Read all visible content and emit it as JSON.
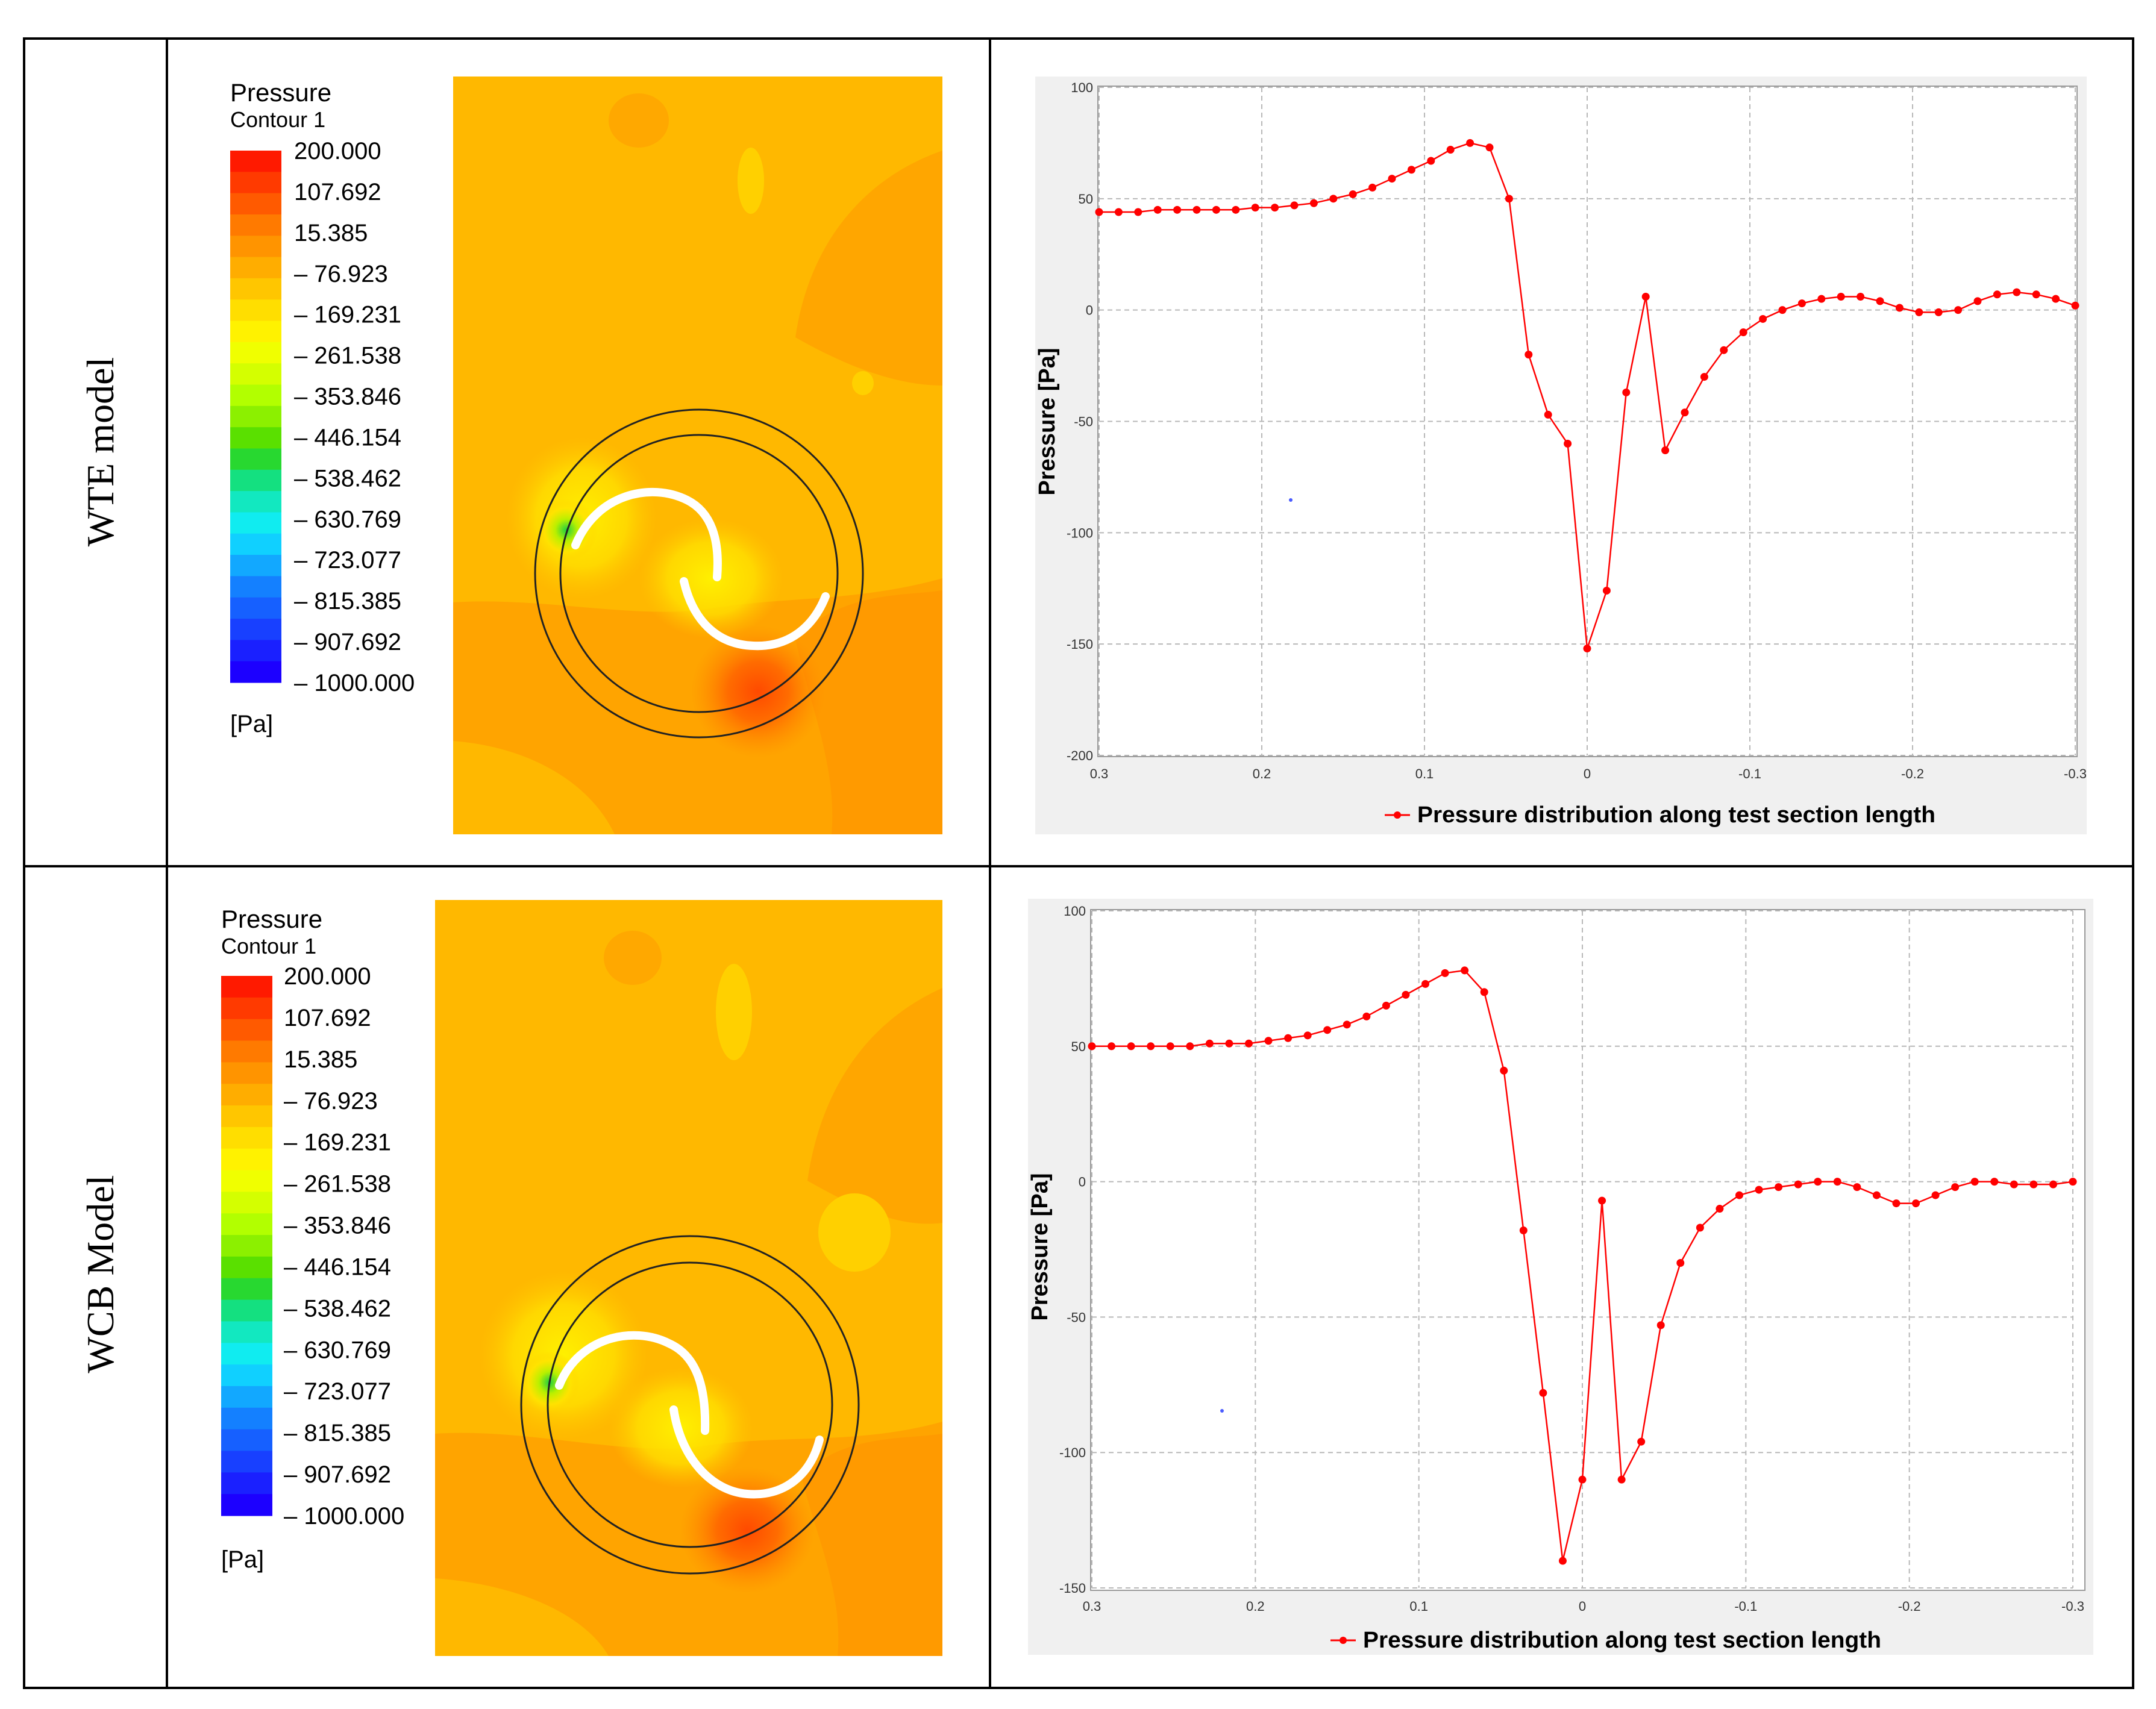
{
  "colorbar": {
    "colors": [
      "#ff1a00",
      "#ff3a00",
      "#ff5a00",
      "#ff7a00",
      "#ff9400",
      "#ffad00",
      "#ffc600",
      "#ffde00",
      "#fff200",
      "#f0ff00",
      "#d4ff00",
      "#b2ff00",
      "#8cf000",
      "#5ae000",
      "#28d830",
      "#14e080",
      "#12e8c0",
      "#10ecf0",
      "#10d0ff",
      "#12a8ff",
      "#1480ff",
      "#1660ff",
      "#1840ff",
      "#1a20ff",
      "#1c00ff"
    ],
    "background": "#ffb000"
  },
  "rows": [
    {
      "row_label": "WTE model",
      "legend": {
        "title": "Pressure",
        "subtitle": "Contour 1",
        "unit": "[Pa]",
        "ticks": [
          "200.000",
          "107.692",
          "15.385",
          "– 76.923",
          "– 169.231",
          "– 261.538",
          "– 353.846",
          "– 446.154",
          "– 538.462",
          "– 630.769",
          "– 723.077",
          "– 815.385",
          "– 907.692",
          "– 1000.000"
        ]
      },
      "chart": {
        "ylabel": "Pressure [Pa]",
        "legend_label": "Pressure distribution along test section length",
        "x_tick_labels": [
          "0.3",
          "0.2",
          "0.1",
          "0",
          "-0.1",
          "-0.2",
          "-0.3"
        ],
        "y_tick_labels": [
          "100",
          "50",
          "0",
          "-50",
          "-100",
          "-150",
          "-200"
        ]
      }
    },
    {
      "row_label": "WCB Model",
      "legend": {
        "title": "Pressure",
        "subtitle": "Contour 1",
        "unit": "[Pa]",
        "ticks": [
          "200.000",
          "107.692",
          "15.385",
          "– 76.923",
          "– 169.231",
          "– 261.538",
          "– 353.846",
          "– 446.154",
          "– 538.462",
          "– 630.769",
          "– 723.077",
          "– 815.385",
          "– 907.692",
          "– 1000.000"
        ]
      },
      "chart": {
        "ylabel": "Pressure [Pa]",
        "legend_label": "Pressure distribution along test section length",
        "x_tick_labels": [
          "0.3",
          "0.2",
          "0.1",
          "0",
          "-0.1",
          "-0.2",
          "-0.3"
        ],
        "y_tick_labels": [
          "100",
          "50",
          "0",
          "-50",
          "-100",
          "-150"
        ]
      }
    }
  ],
  "chart_data": [
    {
      "type": "line",
      "series": [
        {
          "name": "Pressure distribution along test section length",
          "color": "#ff0000",
          "x": [
            0.3,
            0.288,
            0.276,
            0.264,
            0.252,
            0.24,
            0.228,
            0.216,
            0.204,
            0.192,
            0.18,
            0.168,
            0.156,
            0.144,
            0.132,
            0.12,
            0.108,
            0.096,
            0.084,
            0.072,
            0.06,
            0.048,
            0.036,
            0.024,
            0.012,
            0.0,
            -0.012,
            -0.024,
            -0.036,
            -0.048,
            -0.06,
            -0.072,
            -0.084,
            -0.096,
            -0.108,
            -0.12,
            -0.132,
            -0.144,
            -0.156,
            -0.168,
            -0.18,
            -0.192,
            -0.204,
            -0.216,
            -0.228,
            -0.24,
            -0.252,
            -0.264,
            -0.276,
            -0.288,
            -0.3
          ],
          "y": [
            44,
            44,
            44,
            45,
            45,
            45,
            45,
            45,
            46,
            46,
            47,
            48,
            50,
            52,
            55,
            59,
            63,
            67,
            72,
            75,
            73,
            50,
            -20,
            -47,
            -60,
            -152,
            -126,
            -37,
            6,
            -63,
            -46,
            -30,
            -18,
            -10,
            -4,
            0,
            3,
            5,
            6,
            6,
            4,
            1,
            -1,
            -1,
            0,
            4,
            7,
            8,
            7,
            5,
            2
          ]
        }
      ],
      "xlabel": "",
      "ylabel": "Pressure [Pa]",
      "xlim": [
        0.3,
        -0.3
      ],
      "ylim": [
        -200,
        100
      ],
      "x_ticks": [
        0.3,
        0.2,
        0.1,
        0,
        -0.1,
        -0.2,
        -0.3
      ],
      "y_ticks": [
        100,
        50,
        0,
        -50,
        -100,
        -150,
        -200
      ],
      "grid": true,
      "legend_position": "bottom"
    },
    {
      "type": "line",
      "series": [
        {
          "name": "Pressure distribution along test section length",
          "color": "#ff0000",
          "x": [
            0.3,
            0.288,
            0.276,
            0.264,
            0.252,
            0.24,
            0.228,
            0.216,
            0.204,
            0.192,
            0.18,
            0.168,
            0.156,
            0.144,
            0.132,
            0.12,
            0.108,
            0.096,
            0.084,
            0.072,
            0.06,
            0.048,
            0.036,
            0.024,
            0.012,
            0.0,
            -0.012,
            -0.024,
            -0.036,
            -0.048,
            -0.06,
            -0.072,
            -0.084,
            -0.096,
            -0.108,
            -0.12,
            -0.132,
            -0.144,
            -0.156,
            -0.168,
            -0.18,
            -0.192,
            -0.204,
            -0.216,
            -0.228,
            -0.24,
            -0.252,
            -0.264,
            -0.276,
            -0.288,
            -0.3
          ],
          "y": [
            50,
            50,
            50,
            50,
            50,
            50,
            51,
            51,
            51,
            52,
            53,
            54,
            56,
            58,
            61,
            65,
            69,
            73,
            77,
            78,
            70,
            41,
            -18,
            -78,
            -140,
            -110,
            -7,
            -110,
            -96,
            -53,
            -30,
            -17,
            -10,
            -5,
            -3,
            -2,
            -1,
            0,
            0,
            -2,
            -5,
            -8,
            -8,
            -5,
            -2,
            0,
            0,
            -1,
            -1,
            -1,
            0
          ],
          "y_order_note": ""
        }
      ],
      "xlabel": "",
      "ylabel": "Pressure [Pa]",
      "xlim": [
        0.3,
        -0.3
      ],
      "ylim": [
        -150,
        100
      ],
      "x_ticks": [
        0.3,
        0.2,
        0.1,
        0,
        -0.1,
        -0.2,
        -0.3
      ],
      "y_ticks": [
        100,
        50,
        0,
        -50,
        -100,
        -150
      ],
      "grid": true,
      "legend_position": "bottom"
    }
  ]
}
